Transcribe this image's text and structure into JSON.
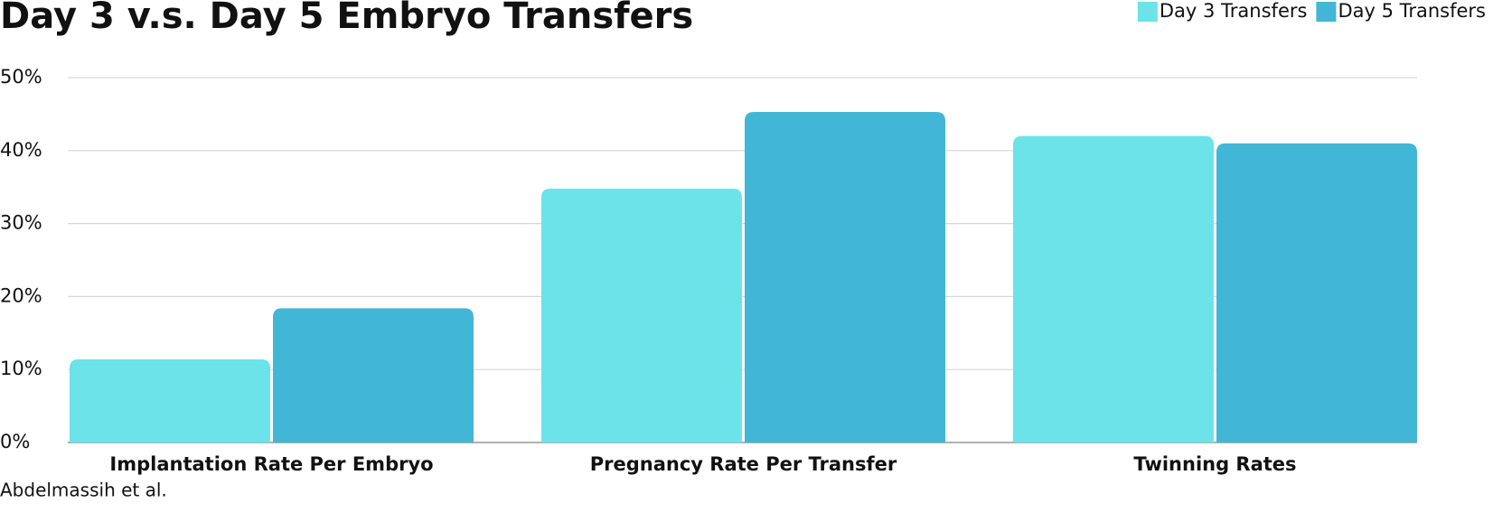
{
  "chart_data": {
    "type": "bar",
    "title": "Day 3 v.s. Day 5 Embryo Transfers",
    "source": "Abdelmassih et al.",
    "categories": [
      "Implantation Rate Per Embryo",
      "Pregnancy Rate Per Transfer",
      "Twinning Rates"
    ],
    "series": [
      {
        "name": "Day 3 Transfers",
        "color": "#6be3e8",
        "values": [
          11.4,
          34.8,
          42
        ]
      },
      {
        "name": "Day 5 Transfers",
        "color": "#42b6d6",
        "values": [
          18.4,
          45.3,
          41
        ]
      }
    ],
    "ylim": [
      0,
      50
    ],
    "yticks": [
      {
        "value": 0,
        "label": "0%"
      },
      {
        "value": 10,
        "label": "10%"
      },
      {
        "value": 20,
        "label": "20%"
      },
      {
        "value": 30,
        "label": "30%"
      },
      {
        "value": 40,
        "label": "40%"
      },
      {
        "value": 50,
        "label": "50%"
      }
    ],
    "grid": true,
    "legend": "top-right"
  }
}
